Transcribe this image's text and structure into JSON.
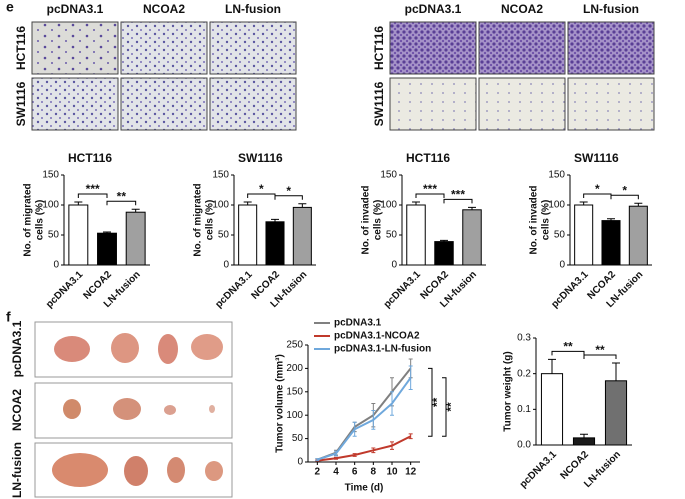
{
  "panel_labels": [
    "e",
    "f"
  ],
  "micrographs": {
    "migration": {
      "columns": [
        "pcDNA3.1",
        "NCOA2",
        "LN-fusion"
      ],
      "rows": [
        "HCT116",
        "SW1116"
      ]
    },
    "invasion": {
      "columns": [
        "pcDNA3.1",
        "NCOA2",
        "LN-fusion"
      ],
      "rows": [
        "HCT116",
        "SW1116"
      ]
    }
  },
  "tumor_photos": {
    "rows": [
      "pcDNA3.1",
      "NCOA2",
      "LN-fusion"
    ]
  },
  "chart_data": [
    {
      "type": "bar",
      "title": "HCT116",
      "y_label": [
        "No. of migrated",
        "cells (%)"
      ],
      "categories": [
        "pcDNA3.1",
        "NCOA2",
        "LN-fusion"
      ],
      "values": [
        100,
        53,
        88
      ],
      "errors": [
        5,
        2,
        5
      ],
      "colors": [
        "#ffffff",
        "#000000",
        "#a0a0a0"
      ],
      "ylim": [
        0,
        150
      ],
      "yticks": [
        0,
        50,
        100,
        150
      ],
      "annotations": [
        "***",
        "**"
      ]
    },
    {
      "type": "bar",
      "title": "SW1116",
      "y_label": [
        "No. of migrated",
        "cells (%)"
      ],
      "categories": [
        "pcDNA3.1",
        "NCOA2",
        "LN-fusion"
      ],
      "values": [
        100,
        72,
        96
      ],
      "errors": [
        5,
        4,
        6
      ],
      "colors": [
        "#ffffff",
        "#000000",
        "#a0a0a0"
      ],
      "ylim": [
        0,
        150
      ],
      "yticks": [
        0,
        50,
        100,
        150
      ],
      "annotations": [
        "*",
        "*"
      ]
    },
    {
      "type": "bar",
      "title": "HCT116",
      "y_label": [
        "No. of invaded",
        "cells (%)"
      ],
      "categories": [
        "pcDNA3.1",
        "NCOA2",
        "LN-fusion"
      ],
      "values": [
        100,
        39,
        92
      ],
      "errors": [
        5,
        2,
        4
      ],
      "colors": [
        "#ffffff",
        "#000000",
        "#a0a0a0"
      ],
      "ylim": [
        0,
        150
      ],
      "yticks": [
        0,
        50,
        100,
        150
      ],
      "annotations": [
        "***",
        "***"
      ]
    },
    {
      "type": "bar",
      "title": "SW1116",
      "y_label": [
        "No. of invaded",
        "cells (%)"
      ],
      "categories": [
        "pcDNA3.1",
        "NCOA2",
        "LN-fusion"
      ],
      "values": [
        100,
        74,
        98
      ],
      "errors": [
        5,
        3,
        5
      ],
      "colors": [
        "#ffffff",
        "#000000",
        "#a0a0a0"
      ],
      "ylim": [
        0,
        150
      ],
      "yticks": [
        0,
        50,
        100,
        150
      ],
      "annotations": [
        "*",
        "*"
      ]
    },
    {
      "type": "line",
      "x_label": "Time (d)",
      "y_label": [
        "Tumor volume (mm³)"
      ],
      "x": [
        2,
        4,
        6,
        8,
        10,
        12
      ],
      "xlim": [
        1,
        13
      ],
      "xticks": [
        2,
        4,
        6,
        8,
        10,
        12
      ],
      "ylim": [
        0,
        250
      ],
      "yticks": [
        0,
        50,
        100,
        150,
        200,
        250
      ],
      "series": [
        {
          "name": "pcDNA3.1",
          "color": "#808080",
          "values": [
            5,
            20,
            75,
            100,
            150,
            200
          ],
          "errors": [
            2,
            5,
            10,
            25,
            30,
            20
          ]
        },
        {
          "name": "pcDNA3.1-NCOA2",
          "color": "#c0392b",
          "values": [
            3,
            8,
            15,
            25,
            35,
            55
          ],
          "errors": [
            1,
            2,
            3,
            5,
            8,
            5
          ]
        },
        {
          "name": "pcDNA3.1-LN-fusion",
          "color": "#6fa8dc",
          "values": [
            5,
            18,
            70,
            90,
            125,
            180
          ],
          "errors": [
            2,
            5,
            15,
            20,
            25,
            25
          ]
        }
      ],
      "annotations": [
        "**",
        "**"
      ]
    },
    {
      "type": "bar",
      "y_label": [
        "Tumor weight (g)"
      ],
      "categories": [
        "pcDNA3.1",
        "NCOA2",
        "LN-fusion"
      ],
      "values": [
        0.2,
        0.02,
        0.18
      ],
      "errors": [
        0.04,
        0.01,
        0.05
      ],
      "colors": [
        "#ffffff",
        "#1a1a1a",
        "#707070"
      ],
      "ylim": [
        0,
        0.3
      ],
      "yticks": [
        {
          "value": 0,
          "label": "0.0"
        },
        0.1,
        0.2,
        0.3
      ],
      "annotations": [
        "**",
        "**"
      ]
    }
  ]
}
